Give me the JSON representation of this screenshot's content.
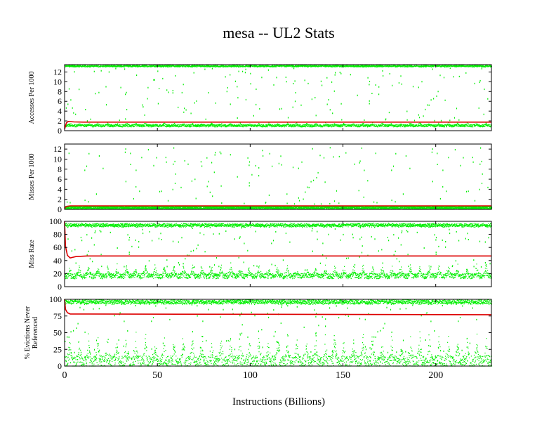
{
  "chart_data": {
    "type": "scatter",
    "title": "mesa -- UL2  Stats",
    "xlabel": "Instructions (Billions)",
    "xlim": [
      0,
      230
    ],
    "xticks": [
      0,
      50,
      100,
      150,
      200
    ],
    "scatter_color": "#00ee00",
    "mean_color": "#dd0000",
    "grid": false,
    "panels": [
      {
        "ylabel": "Accesses Per 1000",
        "ylim": [
          0,
          13.5
        ],
        "yticks": [
          0,
          2,
          4,
          6,
          8,
          10,
          12
        ],
        "mean_series": {
          "x": [
            0,
            1,
            2,
            5,
            10,
            230
          ],
          "y": [
            0.3,
            1.6,
            1.9,
            1.8,
            1.75,
            1.75
          ]
        },
        "bands": [
          {
            "base": 1.0,
            "amp": 0.5,
            "spread": 0.25
          },
          {
            "base": 13.2,
            "amp": 0.15,
            "spread": 0.15
          }
        ],
        "outlier_range": [
          2,
          13
        ]
      },
      {
        "ylabel": "Misses Per 1000",
        "ylim": [
          0,
          13
        ],
        "yticks": [
          0,
          2,
          4,
          6,
          8,
          10,
          12
        ],
        "mean_series": {
          "x": [
            0,
            1,
            3,
            230
          ],
          "y": [
            0.2,
            0.6,
            0.7,
            0.7
          ]
        },
        "bands": [
          {
            "base": 0.2,
            "amp": 0.1,
            "spread": 0.15
          },
          {
            "base": 0.5,
            "amp": 0.1,
            "spread": 0.1
          }
        ],
        "outlier_range": [
          1,
          12.5
        ]
      },
      {
        "ylabel": "Miss Rate",
        "ylim": [
          0,
          100
        ],
        "yticks": [
          0,
          20,
          40,
          60,
          80,
          100
        ],
        "mean_series": {
          "x": [
            0,
            0.5,
            1.5,
            3,
            6,
            12,
            230
          ],
          "y": [
            100,
            62,
            48,
            44,
            46,
            47,
            47
          ]
        },
        "bands": [
          {
            "base": 16,
            "amp": 18,
            "spread": 4
          },
          {
            "base": 94,
            "amp": 3,
            "spread": 2
          }
        ],
        "outlier_range": [
          30,
          92
        ]
      },
      {
        "ylabel": "% Evictions Never Referenced",
        "ylim": [
          0,
          100
        ],
        "yticks": [
          0,
          25,
          50,
          75,
          100
        ],
        "mean_series": {
          "x": [
            0,
            0.5,
            1.5,
            3,
            8,
            230
          ],
          "y": [
            100,
            85,
            80,
            78,
            78,
            77
          ]
        },
        "bands": [
          {
            "base": 5,
            "amp": 45,
            "spread": 10
          },
          {
            "base": 96,
            "amp": 2,
            "spread": 3
          }
        ],
        "outlier_range": [
          20,
          100
        ]
      }
    ]
  }
}
